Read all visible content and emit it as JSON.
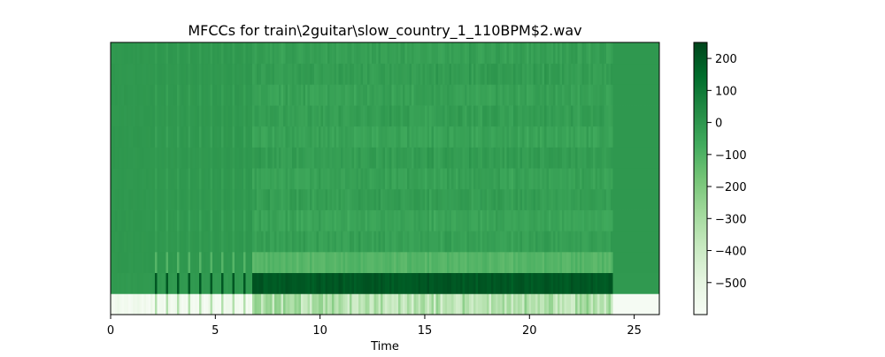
{
  "chart_data": {
    "type": "heatmap",
    "title": "MFCCs for train\\2guitar\\slow_country_1_110BPM$2.wav",
    "xlabel": "Time",
    "ylabel": "",
    "xlim": [
      0,
      26.2
    ],
    "x_ticks": [
      0,
      5,
      10,
      15,
      20,
      25
    ],
    "y_ticks": [],
    "n_coefficients": 13,
    "colormap": "Greens",
    "colorbar": {
      "vmin": -600,
      "vmax": 250,
      "ticks": [
        200,
        100,
        0,
        -100,
        -200,
        -300,
        -400,
        -500
      ],
      "tick_labels": [
        "200",
        "100",
        "0",
        "−100",
        "−200",
        "−300",
        "−400",
        "−500"
      ]
    },
    "silent_segments": [
      [
        0,
        6.8
      ],
      [
        24.0,
        26.2
      ]
    ],
    "onset_times": [
      2.2,
      2.7,
      3.2,
      3.75,
      4.3,
      4.8,
      5.35,
      5.9,
      6.4
    ],
    "coefficient_levels": [
      {
        "coef": 0,
        "active": -330,
        "silent": -590
      },
      {
        "coef": 1,
        "active": 200,
        "silent": -10
      },
      {
        "coef": 2,
        "active": -110,
        "silent": -5
      },
      {
        "coef": 3,
        "active": -30,
        "silent": -5
      },
      {
        "coef": 4,
        "active": -45,
        "silent": -5
      },
      {
        "coef": 5,
        "active": -25,
        "silent": -5
      },
      {
        "coef": 6,
        "active": -35,
        "silent": -5
      },
      {
        "coef": 7,
        "active": -20,
        "silent": -5
      },
      {
        "coef": 8,
        "active": -40,
        "silent": -5
      },
      {
        "coef": 9,
        "active": -25,
        "silent": -5
      },
      {
        "coef": 10,
        "active": -35,
        "silent": -5
      },
      {
        "coef": 11,
        "active": -20,
        "silent": -5
      },
      {
        "coef": 12,
        "active": -30,
        "silent": -5
      }
    ]
  }
}
